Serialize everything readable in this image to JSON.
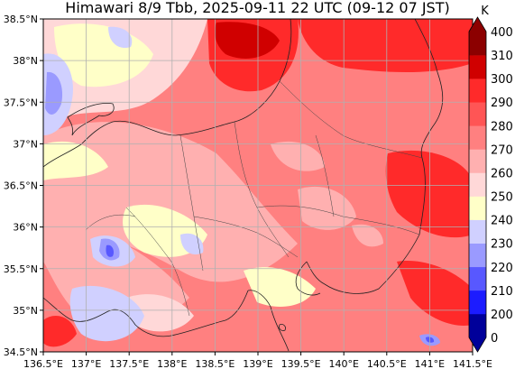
{
  "title": "Himawari 8/9 Tbb, 2025-09-11 22 UTC (09-12 07 JST)",
  "map": {
    "lon_range": [
      136.5,
      141.5
    ],
    "lat_range": [
      34.5,
      38.5
    ],
    "lon_ticks": [
      "136.5°E",
      "137°E",
      "137.5°E",
      "138°E",
      "138.5°E",
      "139°E",
      "139.5°E",
      "140°E",
      "140.5°E",
      "141°E",
      "141.5°E"
    ],
    "lat_ticks": [
      "34.5°N",
      "35°N",
      "35.5°N",
      "36°N",
      "36.5°N",
      "37°N",
      "37.5°N",
      "38°N",
      "38.5°N"
    ],
    "grid": true
  },
  "colorbar": {
    "unit": "K",
    "levels": [
      "0",
      "200",
      "210",
      "220",
      "230",
      "240",
      "250",
      "260",
      "270",
      "280",
      "290",
      "300",
      "310",
      "400"
    ],
    "colors": [
      "#00009a",
      "#1c1cff",
      "#5858ff",
      "#9a9aff",
      "#d0d0ff",
      "#ffffc8",
      "#ffd8d8",
      "#ffb0b0",
      "#ff8080",
      "#ff5555",
      "#ff2a2a",
      "#d00000",
      "#8c0000"
    ]
  }
}
